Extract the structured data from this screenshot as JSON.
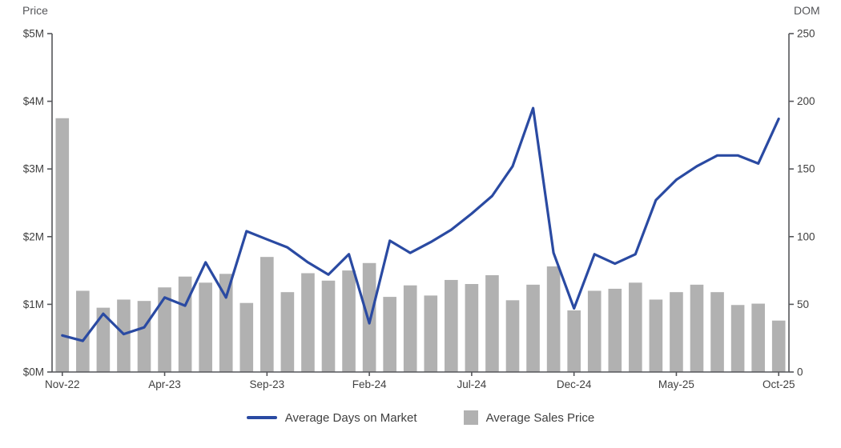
{
  "chart_data": {
    "type": "combo_bar_line",
    "categories": [
      "Nov-22",
      "Dec-22",
      "Jan-23",
      "Feb-23",
      "Mar-23",
      "Apr-23",
      "May-23",
      "Jun-23",
      "Jul-23",
      "Aug-23",
      "Sep-23",
      "Oct-23",
      "Nov-23",
      "Dec-23",
      "Jan-24",
      "Feb-24",
      "Mar-24",
      "Apr-24",
      "May-24",
      "Jun-24",
      "Jul-24",
      "Aug-24",
      "Sep-24",
      "Oct-24",
      "Nov-24",
      "Dec-24",
      "Jan-25",
      "Feb-25",
      "Mar-25",
      "Apr-25",
      "May-25",
      "Jun-25",
      "Jul-25",
      "Aug-25",
      "Sep-25",
      "Oct-25"
    ],
    "series": [
      {
        "name": "Average Days on Market",
        "type": "line",
        "axis": "right",
        "color": "#2a4aa2",
        "values": [
          27,
          23,
          43,
          28,
          33,
          55,
          49,
          81,
          55,
          104,
          98,
          92,
          81,
          72,
          87,
          36,
          97,
          88,
          96,
          105,
          117,
          130,
          152,
          195,
          88,
          47,
          87,
          80,
          87,
          127,
          142,
          152,
          160,
          160,
          154,
          187
        ]
      },
      {
        "name": "Average Sales Price",
        "type": "bar",
        "axis": "left",
        "color": "#b1b1b1",
        "values_unit": "$M",
        "values": [
          3.75,
          1.2,
          0.95,
          1.07,
          1.05,
          1.25,
          1.41,
          1.32,
          1.45,
          1.02,
          1.7,
          1.18,
          1.46,
          1.35,
          1.5,
          1.61,
          1.11,
          1.28,
          1.13,
          1.36,
          1.3,
          1.43,
          1.06,
          1.29,
          1.56,
          0.91,
          1.2,
          1.23,
          1.32,
          1.07,
          1.18,
          1.29,
          1.18,
          0.99,
          1.01,
          0.76
        ]
      }
    ],
    "left_axis": {
      "title": "Price",
      "min": 0,
      "max": 5,
      "tick_values": [
        0,
        1,
        2,
        3,
        4,
        5
      ],
      "tick_labels": [
        "$0M",
        "$1M",
        "$2M",
        "$3M",
        "$4M",
        "$5M"
      ]
    },
    "right_axis": {
      "title": "DOM",
      "min": 0,
      "max": 250,
      "tick_values": [
        0,
        50,
        100,
        150,
        200,
        250
      ],
      "tick_labels": [
        "0",
        "50",
        "100",
        "150",
        "200",
        "250"
      ]
    },
    "x_ticks": {
      "indices": [
        0,
        5,
        10,
        15,
        20,
        25,
        30,
        35
      ],
      "labels": [
        "Nov-22",
        "Apr-23",
        "Sep-23",
        "Feb-24",
        "Jul-24",
        "Dec-24",
        "May-25",
        "Oct-25"
      ]
    },
    "grid": false,
    "legend_position": "bottom",
    "axis_color": "#55565a",
    "text_color": "#404040"
  }
}
